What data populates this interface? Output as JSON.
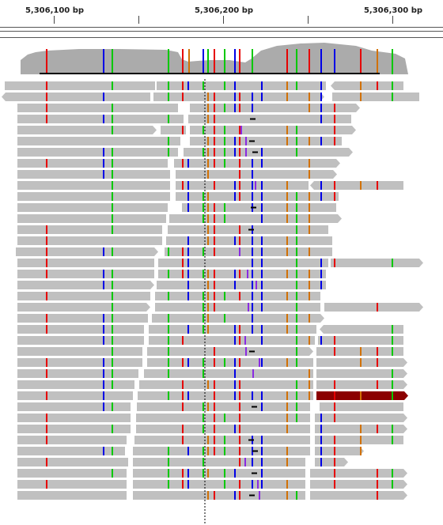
{
  "ruler": {
    "labels": [
      {
        "text": "5,306,100 bp"
      },
      {
        "text": "5,306,200 bp"
      },
      {
        "text": "5,306,300 bp"
      }
    ]
  },
  "colors": {
    "read": "#c0c0c0",
    "coverage": "#ababab",
    "A": "#00c800",
    "C": "#0000e6",
    "G": "#d17105",
    "T": "#e60000",
    "insertion": "#8a2be2",
    "deletion": "#000000",
    "highlight_read": "#8b0000"
  }
}
